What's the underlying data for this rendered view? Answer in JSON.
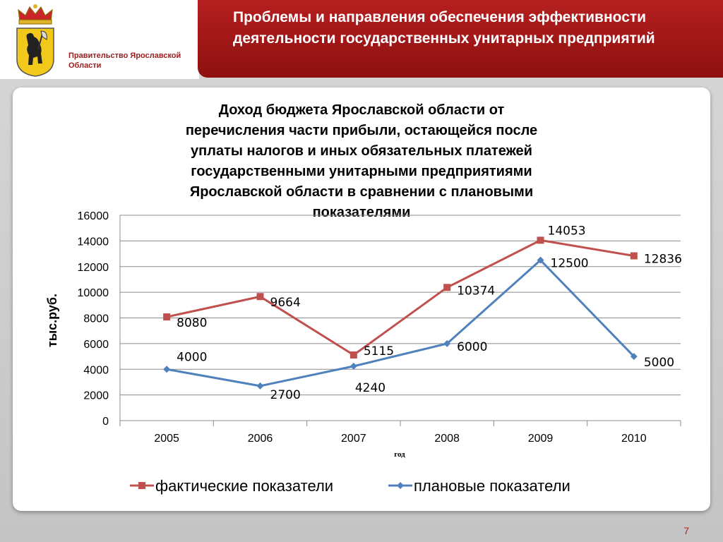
{
  "header": {
    "org_name": "Правительство Ярославской Области",
    "slide_title": "Проблемы и направления обеспечения эффективности деятельности государственных унитарных предприятий",
    "page_number": "7"
  },
  "colors": {
    "brand_red": "#b51f1f",
    "actual_series": "#c0504d",
    "plan_series": "#4f81bd",
    "logo_yellow": "#f2c81a"
  },
  "chart_data": {
    "type": "line",
    "title": "Доход бюджета Ярославской области от перечисления части прибыли, остающейся после уплаты налогов и иных обязательных платежей государственными унитарными предприятиями Ярославской области в сравнении с плановыми показателями",
    "xlabel": "год",
    "ylabel": "тыс.руб.",
    "categories": [
      "2005",
      "2006",
      "2007",
      "2008",
      "2009",
      "2010"
    ],
    "ylim": [
      0,
      16000
    ],
    "yticks": [
      0,
      2000,
      4000,
      6000,
      8000,
      10000,
      12000,
      14000,
      16000
    ],
    "grid": true,
    "legend": "bottom",
    "series": [
      {
        "name": "фактические показатели",
        "marker": "square",
        "color": "#c0504d",
        "values": [
          8080,
          9664,
          5115,
          10374,
          14053,
          12836
        ]
      },
      {
        "name": "плановые показатели",
        "marker": "diamond",
        "color": "#4f81bd",
        "values": [
          4000,
          2700,
          4240,
          6000,
          12500,
          5000
        ]
      }
    ]
  }
}
